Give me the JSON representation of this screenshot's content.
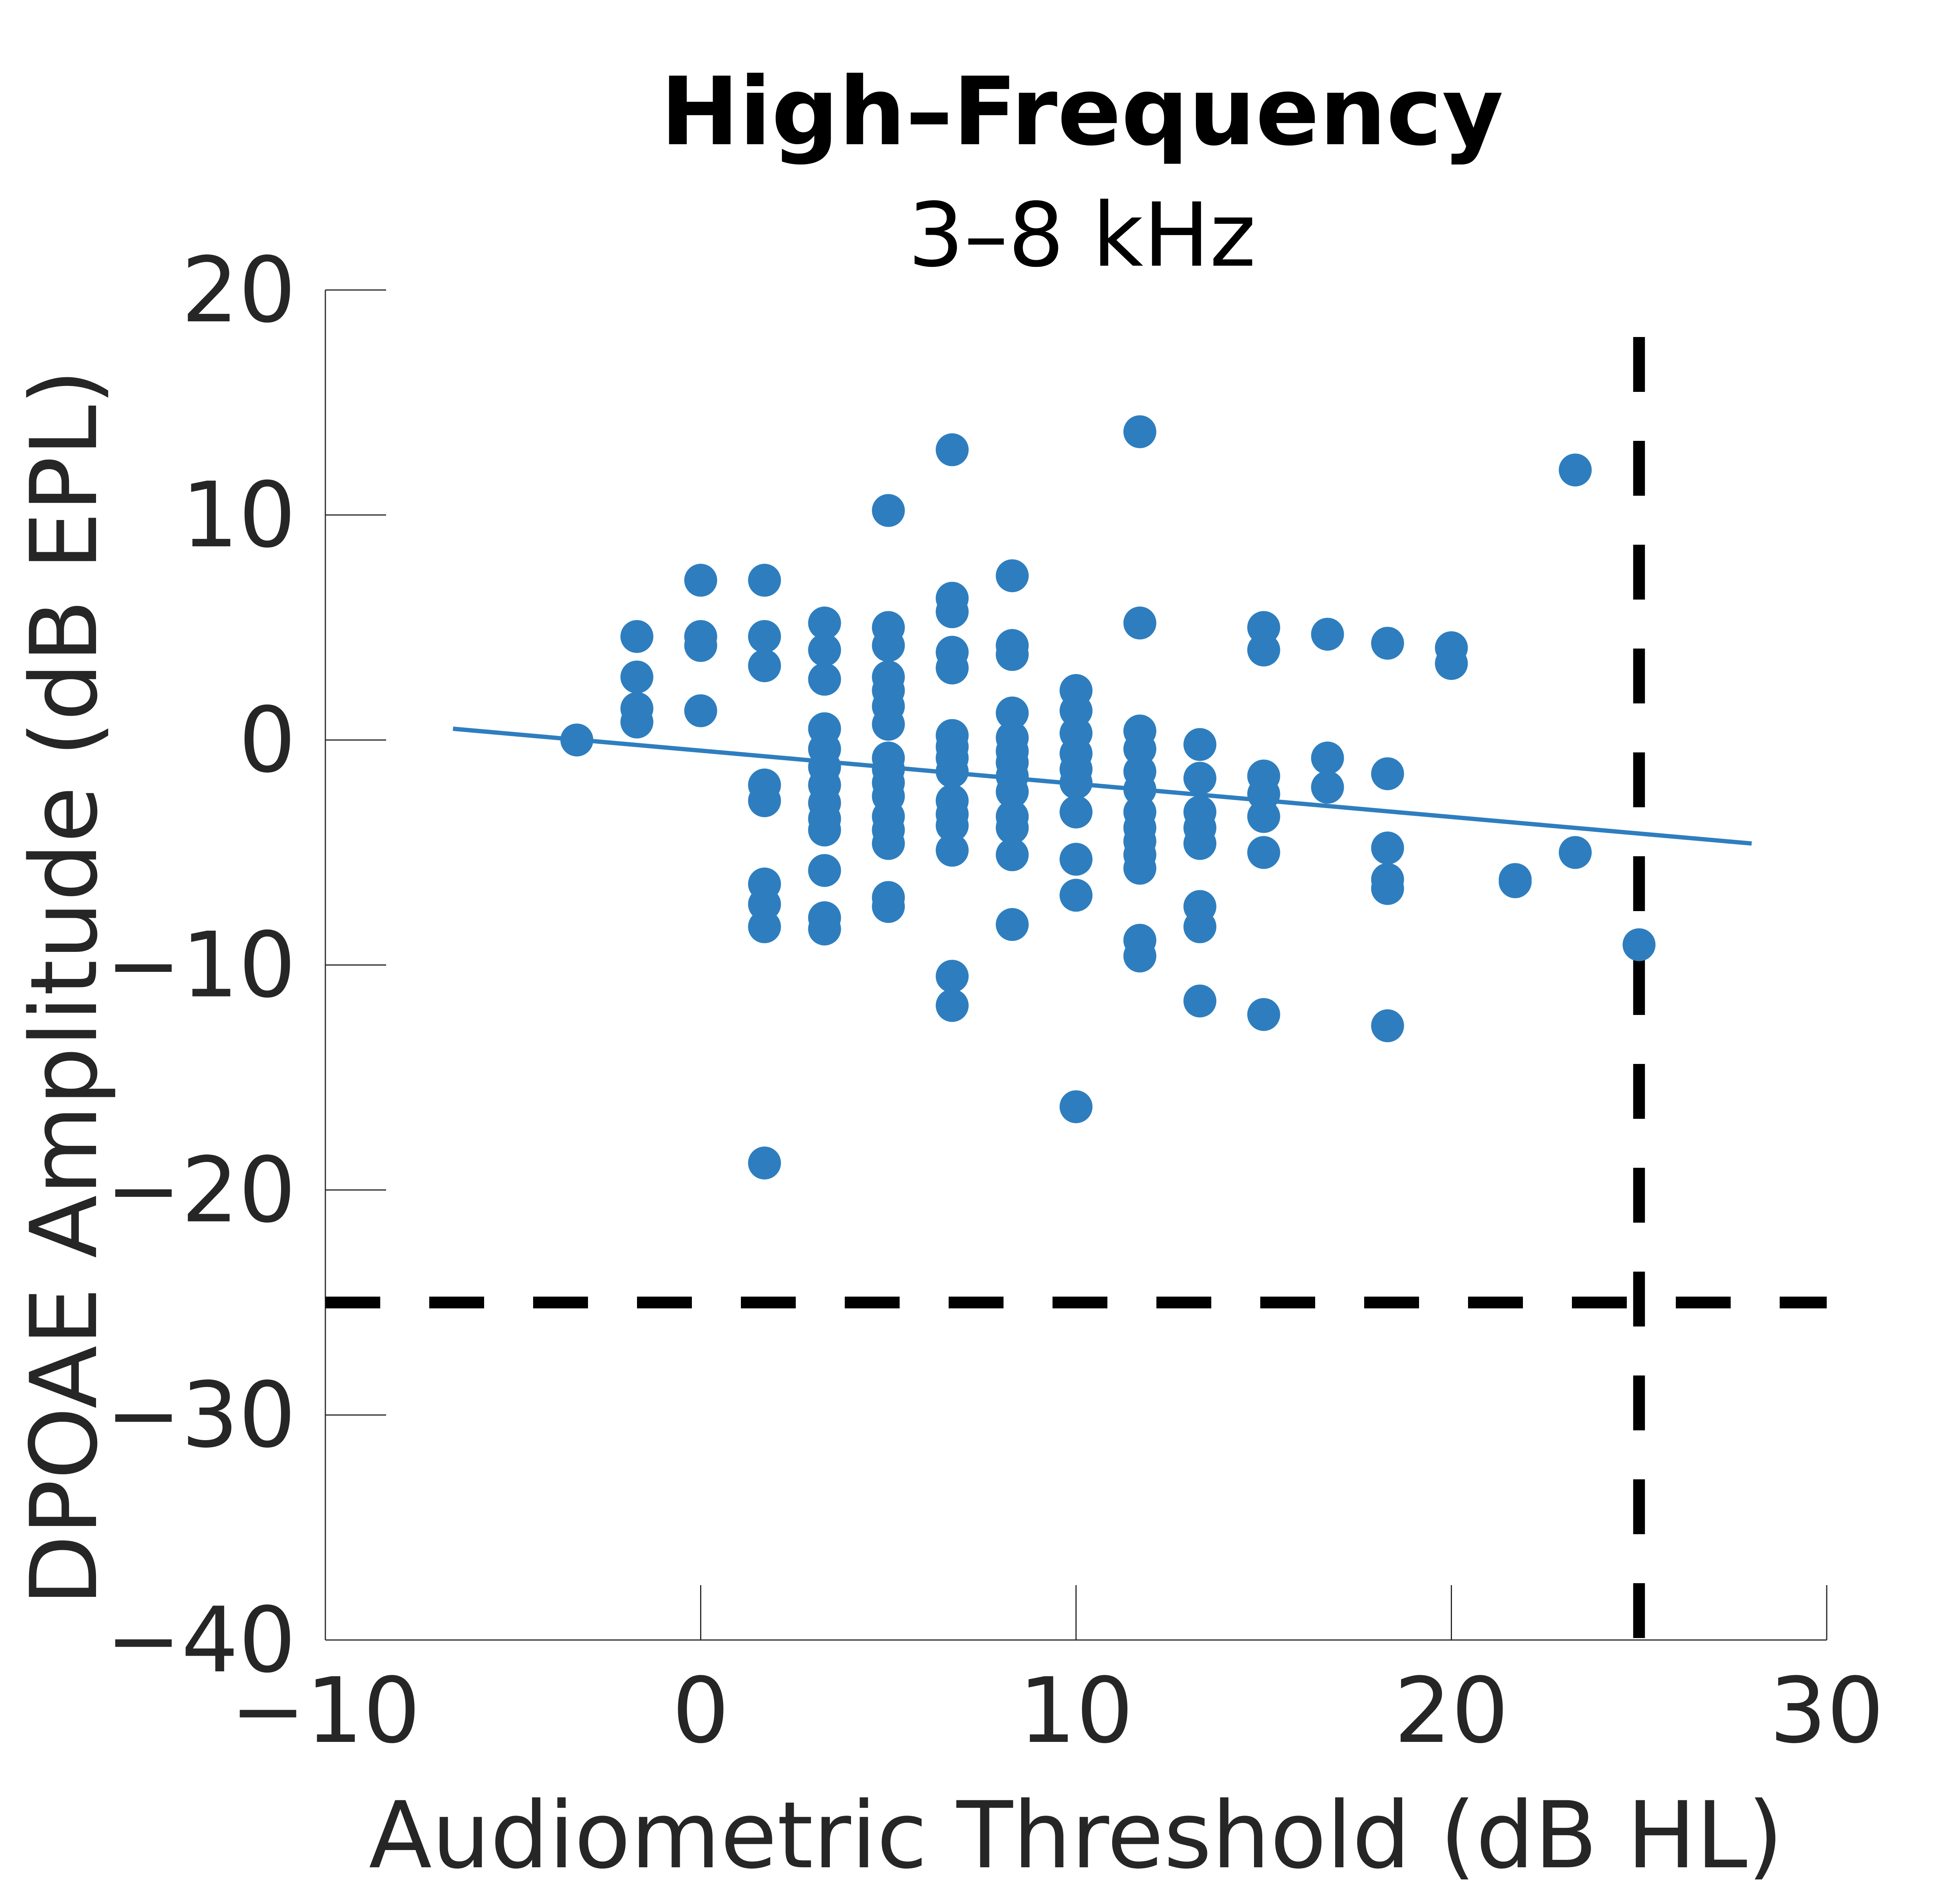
{
  "chart_data": {
    "type": "scatter",
    "title": "High–Frequency",
    "subtitle": "3–8 kHz",
    "xlabel": "Audiometric Threshold (dB HL)",
    "ylabel": "DPOAE Amplitude (dB EPL)",
    "xlim": [
      -10,
      30
    ],
    "ylim": [
      -40,
      20
    ],
    "xticks": [
      -10,
      0,
      10,
      20,
      30
    ],
    "yticks": [
      -40,
      -30,
      -20,
      -10,
      0,
      10,
      20
    ],
    "xtick_labels": [
      "−10",
      "0",
      "10",
      "20",
      "30"
    ],
    "ytick_labels": [
      "−40",
      "−30",
      "−20",
      "−10",
      "0",
      "10",
      "20"
    ],
    "grid": false,
    "marker_color": "#2e7ebf",
    "series": [
      {
        "type": "scatter",
        "points": [
          [
            -3.3,
            0.0
          ],
          [
            -1.7,
            4.6
          ],
          [
            -1.7,
            2.8
          ],
          [
            -1.7,
            1.4
          ],
          [
            -1.7,
            0.8
          ],
          [
            0.0,
            7.1
          ],
          [
            0.0,
            4.6
          ],
          [
            0.0,
            4.2
          ],
          [
            0.0,
            1.3
          ],
          [
            1.7,
            7.1
          ],
          [
            1.7,
            4.6
          ],
          [
            1.7,
            3.3
          ],
          [
            1.7,
            -2.0
          ],
          [
            1.7,
            -2.7
          ],
          [
            1.7,
            -6.4
          ],
          [
            1.7,
            -7.3
          ],
          [
            1.7,
            -8.3
          ],
          [
            1.7,
            -18.8
          ],
          [
            3.3,
            5.2
          ],
          [
            3.3,
            4.0
          ],
          [
            3.3,
            2.7
          ],
          [
            3.3,
            0.5
          ],
          [
            3.3,
            -0.4
          ],
          [
            3.3,
            -1.2
          ],
          [
            3.3,
            -2.0
          ],
          [
            3.3,
            -2.8
          ],
          [
            3.3,
            -3.5
          ],
          [
            3.3,
            -4.0
          ],
          [
            3.3,
            -5.8
          ],
          [
            3.3,
            -7.9
          ],
          [
            3.3,
            -8.4
          ],
          [
            5.0,
            10.2
          ],
          [
            5.0,
            5.0
          ],
          [
            5.0,
            4.2
          ],
          [
            5.0,
            2.8
          ],
          [
            5.0,
            2.2
          ],
          [
            5.0,
            1.5
          ],
          [
            5.0,
            0.7
          ],
          [
            5.0,
            -0.8
          ],
          [
            5.0,
            -1.3
          ],
          [
            5.0,
            -1.9
          ],
          [
            5.0,
            -2.5
          ],
          [
            5.0,
            -3.4
          ],
          [
            5.0,
            -4.0
          ],
          [
            5.0,
            -4.6
          ],
          [
            5.0,
            -7.0
          ],
          [
            5.0,
            -7.4
          ],
          [
            6.7,
            12.9
          ],
          [
            6.7,
            6.3
          ],
          [
            6.7,
            5.7
          ],
          [
            6.7,
            3.9
          ],
          [
            6.7,
            3.2
          ],
          [
            6.7,
            0.2
          ],
          [
            6.7,
            -0.3
          ],
          [
            6.7,
            -0.8
          ],
          [
            6.7,
            -1.4
          ],
          [
            6.7,
            -2.7
          ],
          [
            6.7,
            -3.3
          ],
          [
            6.7,
            -3.8
          ],
          [
            6.7,
            -4.9
          ],
          [
            6.7,
            -10.5
          ],
          [
            6.7,
            -11.8
          ],
          [
            8.3,
            7.3
          ],
          [
            8.3,
            4.2
          ],
          [
            8.3,
            3.8
          ],
          [
            8.3,
            1.2
          ],
          [
            8.3,
            0.1
          ],
          [
            8.3,
            -0.5
          ],
          [
            8.3,
            -1.0
          ],
          [
            8.3,
            -1.6
          ],
          [
            8.3,
            -2.3
          ],
          [
            8.3,
            -3.4
          ],
          [
            8.3,
            -3.9
          ],
          [
            8.3,
            -5.1
          ],
          [
            8.3,
            -8.2
          ],
          [
            10.0,
            2.2
          ],
          [
            10.0,
            1.3
          ],
          [
            10.0,
            0.3
          ],
          [
            10.0,
            -0.6
          ],
          [
            10.0,
            -1.3
          ],
          [
            10.0,
            -1.9
          ],
          [
            10.0,
            -3.2
          ],
          [
            10.0,
            -5.3
          ],
          [
            10.0,
            -6.9
          ],
          [
            10.0,
            -16.3
          ],
          [
            11.7,
            13.7
          ],
          [
            11.7,
            5.2
          ],
          [
            11.7,
            0.4
          ],
          [
            11.7,
            -0.4
          ],
          [
            11.7,
            -1.4
          ],
          [
            11.7,
            -2.2
          ],
          [
            11.7,
            -3.2
          ],
          [
            11.7,
            -3.9
          ],
          [
            11.7,
            -4.5
          ],
          [
            11.7,
            -5.1
          ],
          [
            11.7,
            -5.7
          ],
          [
            11.7,
            -8.9
          ],
          [
            11.7,
            -9.6
          ],
          [
            13.3,
            -0.2
          ],
          [
            13.3,
            -1.7
          ],
          [
            13.3,
            -3.2
          ],
          [
            13.3,
            -3.9
          ],
          [
            13.3,
            -4.6
          ],
          [
            13.3,
            -7.4
          ],
          [
            13.3,
            -8.3
          ],
          [
            13.3,
            -11.6
          ],
          [
            15.0,
            5.0
          ],
          [
            15.0,
            4.0
          ],
          [
            15.0,
            -1.6
          ],
          [
            15.0,
            -2.4
          ],
          [
            15.0,
            -3.4
          ],
          [
            15.0,
            -5.0
          ],
          [
            15.0,
            -12.2
          ],
          [
            16.7,
            4.7
          ],
          [
            16.7,
            -0.8
          ],
          [
            16.7,
            -2.1
          ],
          [
            18.3,
            4.3
          ],
          [
            18.3,
            -1.5
          ],
          [
            18.3,
            -4.8
          ],
          [
            18.3,
            -6.2
          ],
          [
            18.3,
            -6.6
          ],
          [
            18.3,
            -12.7
          ],
          [
            20.0,
            4.1
          ],
          [
            20.0,
            3.4
          ],
          [
            21.7,
            -6.2
          ],
          [
            21.7,
            -6.3
          ],
          [
            23.3,
            12.0
          ],
          [
            23.3,
            -5.0
          ],
          [
            25.0,
            -9.1
          ]
        ]
      },
      {
        "type": "line",
        "points": [
          [
            -6.6,
            0.5
          ],
          [
            28.0,
            -4.6
          ]
        ]
      }
    ],
    "reference_lines": [
      {
        "orientation": "horizontal",
        "value": -25,
        "style": "dashed",
        "color": "#000000"
      },
      {
        "orientation": "vertical",
        "value": 25,
        "style": "dashed",
        "color": "#000000"
      }
    ]
  }
}
